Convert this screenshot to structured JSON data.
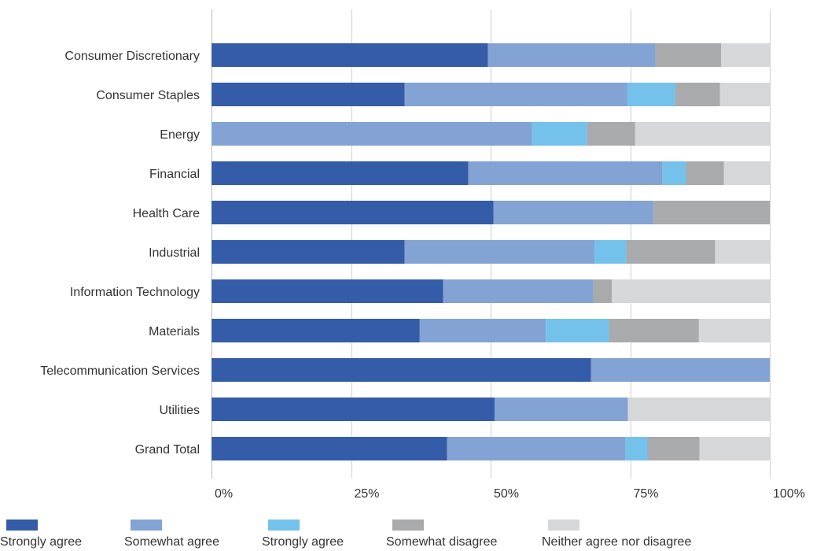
{
  "chart_data": {
    "type": "bar",
    "orientation": "horizontal",
    "stacked": true,
    "categories": [
      "Consumer Discretionary",
      "Consumer Staples",
      "Energy",
      "Financial",
      "Health Care",
      "Industrial",
      "Information Technology",
      "Materials",
      "Telecommunication Services",
      "Utilities",
      "Grand Total"
    ],
    "series": [
      {
        "name": "Strongly agree",
        "color": "#345ca8",
        "values": [
          49.5,
          34.6,
          0,
          46.0,
          50.5,
          34.6,
          41.5,
          37.3,
          68.0,
          50.7,
          42.2
        ]
      },
      {
        "name": "Somewhat agree",
        "color": "#82a3d4",
        "values": [
          30.0,
          39.9,
          57.4,
          34.8,
          28.6,
          34.0,
          26.9,
          22.6,
          32.0,
          23.9,
          32.0
        ]
      },
      {
        "name": "Strongly agree",
        "color": "#74c2ec",
        "values": [
          0,
          8.6,
          9.9,
          4.2,
          0,
          5.7,
          0,
          11.3,
          0,
          0,
          3.9
        ]
      },
      {
        "name": "Somewhat disagree",
        "color": "#a9aaac",
        "values": [
          11.8,
          8.0,
          8.6,
          6.8,
          20.9,
          15.9,
          3.3,
          16.1,
          0,
          0,
          9.3
        ]
      },
      {
        "name": "Neither agree nor disagree",
        "color": "#d6d7d9",
        "values": [
          8.7,
          8.9,
          24.1,
          8.2,
          0,
          9.8,
          28.3,
          12.7,
          0,
          25.4,
          12.6
        ]
      }
    ],
    "xticks": [
      "0%",
      "25%",
      "50%",
      "75%",
      "100%"
    ],
    "xlim": [
      0,
      100
    ],
    "grid": true,
    "legend_position": "bottom"
  }
}
